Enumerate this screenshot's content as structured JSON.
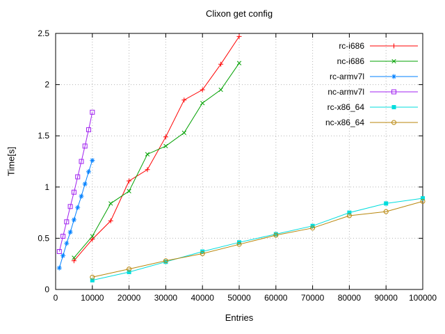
{
  "chart_data": {
    "type": "line",
    "title": "Clixon get config",
    "xlabel": "Entries",
    "ylabel": "Time[s]",
    "xlim": [
      0,
      100000
    ],
    "ylim": [
      0,
      2.5
    ],
    "grid": true,
    "legend_position": "top-right-inside",
    "x_tick_values": [
      0,
      10000,
      20000,
      30000,
      40000,
      50000,
      60000,
      70000,
      80000,
      90000,
      100000
    ],
    "x_tick_labels": [
      "0",
      "10000",
      "20000",
      "30000",
      "40000",
      "50000",
      "60000",
      "70000",
      "80000",
      "90000",
      "100000"
    ],
    "y_tick_values": [
      0,
      0.5,
      1,
      1.5,
      2,
      2.5
    ],
    "y_tick_labels": [
      "0",
      "0.5",
      "1",
      "1.5",
      "2",
      "2.5"
    ],
    "series": [
      {
        "name": "rc-i686",
        "color": "#ff0000",
        "marker": "plus",
        "points": [
          [
            5000,
            0.28
          ],
          [
            10000,
            0.49
          ],
          [
            15000,
            0.67
          ],
          [
            20000,
            1.06
          ],
          [
            25000,
            1.17
          ],
          [
            30000,
            1.49
          ],
          [
            35000,
            1.85
          ],
          [
            40000,
            1.95
          ],
          [
            45000,
            2.2
          ],
          [
            50000,
            2.47
          ]
        ]
      },
      {
        "name": "nc-i686",
        "color": "#00a000",
        "marker": "cross",
        "points": [
          [
            5000,
            0.31
          ],
          [
            10000,
            0.52
          ],
          [
            15000,
            0.84
          ],
          [
            20000,
            0.96
          ],
          [
            25000,
            1.32
          ],
          [
            30000,
            1.4
          ],
          [
            35000,
            1.53
          ],
          [
            40000,
            1.82
          ],
          [
            45000,
            1.95
          ],
          [
            50000,
            2.21
          ]
        ]
      },
      {
        "name": "rc-armv7l",
        "color": "#0080ff",
        "marker": "asterisk",
        "points": [
          [
            1000,
            0.21
          ],
          [
            2000,
            0.33
          ],
          [
            3000,
            0.45
          ],
          [
            4000,
            0.56
          ],
          [
            5000,
            0.68
          ],
          [
            6000,
            0.8
          ],
          [
            7000,
            0.91
          ],
          [
            8000,
            1.03
          ],
          [
            9000,
            1.15
          ],
          [
            10000,
            1.26
          ]
        ]
      },
      {
        "name": "nc-armv7l",
        "color": "#a020f0",
        "marker": "square-open",
        "points": [
          [
            1000,
            0.37
          ],
          [
            2000,
            0.52
          ],
          [
            3000,
            0.66
          ],
          [
            4000,
            0.81
          ],
          [
            5000,
            0.95
          ],
          [
            6000,
            1.1
          ],
          [
            7000,
            1.25
          ],
          [
            8000,
            1.4
          ],
          [
            9000,
            1.56
          ],
          [
            10000,
            1.73
          ]
        ]
      },
      {
        "name": "rc-x86_64",
        "color": "#00dddd",
        "marker": "square-filled",
        "points": [
          [
            10000,
            0.09
          ],
          [
            20000,
            0.17
          ],
          [
            30000,
            0.27
          ],
          [
            40000,
            0.37
          ],
          [
            50000,
            0.46
          ],
          [
            60000,
            0.54
          ],
          [
            70000,
            0.62
          ],
          [
            80000,
            0.75
          ],
          [
            90000,
            0.84
          ],
          [
            100000,
            0.89
          ]
        ]
      },
      {
        "name": "nc-x86_64",
        "color": "#b8860b",
        "marker": "circle-open",
        "points": [
          [
            10000,
            0.12
          ],
          [
            20000,
            0.2
          ],
          [
            30000,
            0.28
          ],
          [
            40000,
            0.35
          ],
          [
            50000,
            0.44
          ],
          [
            60000,
            0.53
          ],
          [
            70000,
            0.6
          ],
          [
            80000,
            0.72
          ],
          [
            90000,
            0.76
          ],
          [
            100000,
            0.86
          ]
        ]
      }
    ]
  }
}
